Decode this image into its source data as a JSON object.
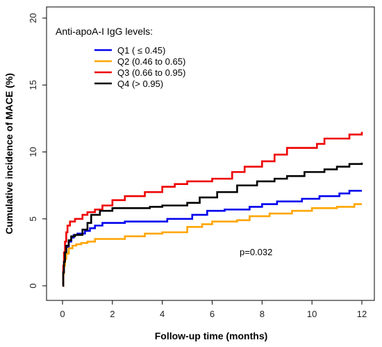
{
  "chart_data": {
    "type": "line",
    "step": true,
    "xlabel": "Follow-up time (months)",
    "ylabel": "Cumulative incidence of MACE (%)",
    "xlim": [
      0,
      12
    ],
    "ylim": [
      0,
      20
    ],
    "xticks": [
      0,
      2,
      4,
      6,
      8,
      10,
      12
    ],
    "yticks": [
      0,
      5,
      10,
      15,
      20
    ],
    "grid": false,
    "legend": {
      "title": "Anti-apoA-I IgG levels:",
      "placement": "top-left"
    },
    "annotation": "p=0.032",
    "series": [
      {
        "name": "Q1 ( ≤  0.45)",
        "color": "#0000ee",
        "x": [
          0,
          0.03,
          0.06,
          0.1,
          0.15,
          0.25,
          0.35,
          0.45,
          0.6,
          0.9,
          1.1,
          1.3,
          1.6,
          2.0,
          2.5,
          3.3,
          4.2,
          5.2,
          5.8,
          6.5,
          7.5,
          8.0,
          8.6,
          9.6,
          10.3,
          11.1,
          11.5,
          12.0
        ],
        "y": [
          0,
          1.2,
          1.8,
          2.4,
          2.9,
          3.3,
          3.6,
          3.8,
          3.9,
          4.1,
          4.3,
          4.5,
          4.7,
          4.7,
          4.8,
          4.8,
          5.0,
          5.3,
          5.6,
          5.7,
          5.9,
          6.1,
          6.3,
          6.5,
          6.7,
          6.9,
          7.1,
          7.1
        ]
      },
      {
        "name": "Q2 (0.46 to 0.65)",
        "color": "#ffa500",
        "x": [
          0,
          0.03,
          0.06,
          0.1,
          0.15,
          0.25,
          0.4,
          0.55,
          0.75,
          1.0,
          1.3,
          1.8,
          2.5,
          3.3,
          4.0,
          5.0,
          5.6,
          6.0,
          7.0,
          7.5,
          8.3,
          9.2,
          10.0,
          11.0,
          11.7,
          12.0
        ],
        "y": [
          0,
          0.9,
          1.5,
          2.0,
          2.4,
          2.8,
          3.0,
          3.1,
          3.2,
          3.3,
          3.5,
          3.5,
          3.7,
          3.9,
          4.0,
          4.4,
          4.6,
          4.8,
          4.9,
          5.2,
          5.4,
          5.6,
          5.8,
          5.9,
          6.1,
          6.1
        ]
      },
      {
        "name": "Q3 (0.66 to 0.95)",
        "color": "#ee0000",
        "x": [
          0,
          0.03,
          0.06,
          0.1,
          0.15,
          0.2,
          0.3,
          0.5,
          0.8,
          1.0,
          1.3,
          1.6,
          2.0,
          2.5,
          3.3,
          4.0,
          4.5,
          5.0,
          6.0,
          6.8,
          7.3,
          8.0,
          8.5,
          9.0,
          10.2,
          10.5,
          11.5,
          12.0
        ],
        "y": [
          0,
          1.5,
          2.5,
          3.3,
          4.0,
          4.5,
          4.8,
          5.0,
          5.3,
          5.5,
          5.7,
          6.0,
          6.4,
          6.7,
          7.0,
          7.4,
          7.6,
          7.8,
          8.0,
          8.5,
          8.9,
          9.3,
          9.8,
          10.3,
          10.6,
          11.0,
          11.3,
          11.5
        ]
      },
      {
        "name": "Q4 (> 0.95)",
        "color": "#000000",
        "x": [
          0,
          0.03,
          0.06,
          0.1,
          0.15,
          0.25,
          0.35,
          0.5,
          0.8,
          1.0,
          1.15,
          1.5,
          2.0,
          3.0,
          3.5,
          4.0,
          5.0,
          5.5,
          6.2,
          7.0,
          7.8,
          8.5,
          9.0,
          9.7,
          10.5,
          11.0,
          11.5,
          12.0
        ],
        "y": [
          0,
          1.0,
          1.8,
          2.5,
          3.0,
          3.4,
          3.7,
          3.8,
          4.2,
          4.7,
          5.3,
          5.6,
          5.8,
          5.8,
          5.9,
          6.0,
          6.2,
          6.6,
          7.0,
          7.5,
          7.8,
          8.0,
          8.2,
          8.5,
          8.7,
          8.9,
          9.1,
          9.2
        ]
      }
    ]
  }
}
